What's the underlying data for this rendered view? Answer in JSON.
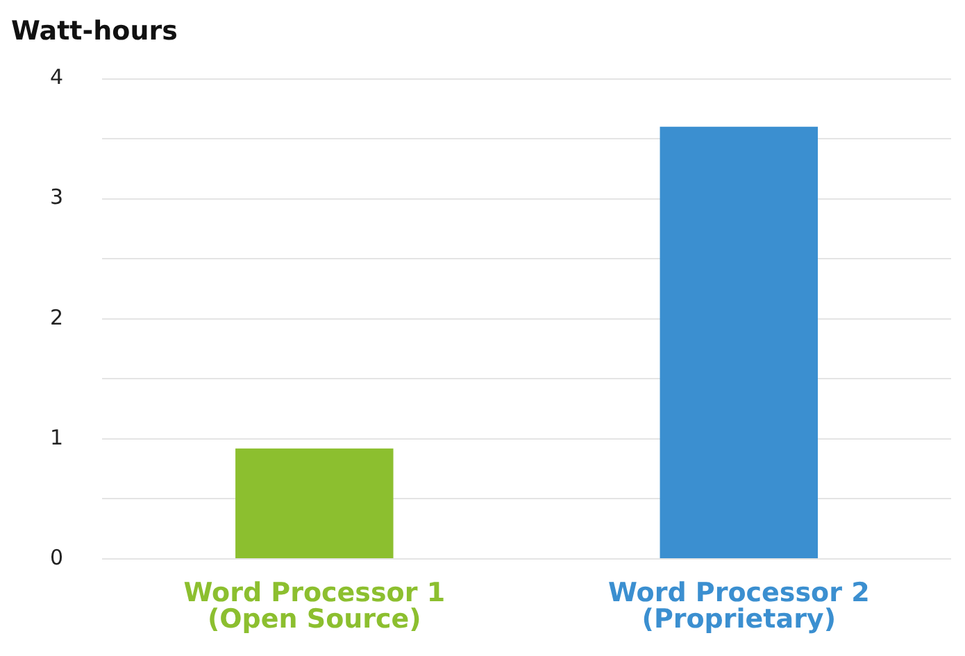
{
  "chart_data": {
    "type": "bar",
    "ylabel": "Watt-hours",
    "categories": [
      "Word Processor 1\n(Open Source)",
      "Word Processor 2\n(Proprietary)"
    ],
    "values": [
      0.92,
      3.6
    ],
    "colors": [
      "#8cbf2f",
      "#3b8fd0"
    ],
    "ylim": [
      0,
      4
    ],
    "yticks": [
      0,
      {
        "value": 0.5,
        "label": null
      },
      1,
      {
        "value": 1.5,
        "label": null
      },
      2,
      {
        "value": 2.5,
        "label": null
      },
      3,
      {
        "value": 3.5,
        "label": null
      },
      4
    ],
    "grid": "y"
  }
}
